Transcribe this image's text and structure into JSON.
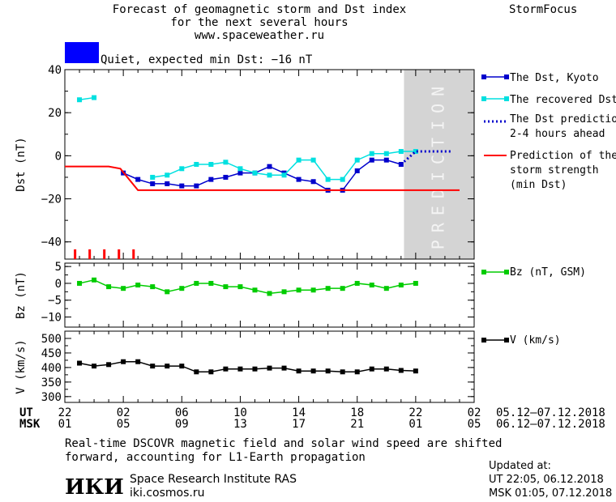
{
  "header": {
    "title_line1": "Forecast of geomagnetic storm and Dst index",
    "title_line2": "for the next several hours",
    "title_line3": "www.spaceweather.ru",
    "brand": "StormFocus"
  },
  "status": {
    "text": "Quiet, expected min Dst: −16 nT",
    "color": "#0000ff"
  },
  "prediction_band_label": "PREDICTION",
  "legend": {
    "dst_kyoto": "The Dst, Kyoto",
    "recovered": "The recovered Dst",
    "prediction_l1": "The Dst prediction",
    "prediction_l2": "2-4 hours ahead",
    "strength_l1": "Prediction of the",
    "strength_l2": "storm strength",
    "strength_l3": "(min Dst)",
    "bz": "Bz (nT, GSM)",
    "v": "V (km/s)"
  },
  "time_axis": {
    "ut_label": "UT",
    "msk_label": "MSK",
    "ut_ticks": [
      "22",
      "02",
      "06",
      "10",
      "14",
      "18",
      "22",
      "02"
    ],
    "msk_ticks": [
      "01",
      "05",
      "09",
      "13",
      "17",
      "21",
      "01",
      "05"
    ],
    "ut_range": "05.12–07.12.2018",
    "msk_range": "06.12–07.12.2018"
  },
  "footer": {
    "note_l1": "Real-time DSCOVR magnetic field and solar wind speed are shifted",
    "note_l2": "forward, accounting for L1-Earth propagation",
    "logo": "ИКИ",
    "institute": "Space Research Institute RAS",
    "site": "iki.cosmos.ru",
    "updated_title": "Updated at:",
    "updated_ut": "UT  22:05, 06.12.2018",
    "updated_msk": "MSK 01:05, 07.12.2018"
  },
  "chart_data": [
    {
      "type": "line",
      "panel": "dst",
      "ylabel": "Dst (nT)",
      "ylim": [
        -48,
        40
      ],
      "yticks": [
        40,
        20,
        0,
        -20,
        -40
      ],
      "xlim": [
        -1,
        27
      ],
      "prediction_band_x": [
        22.2,
        26
      ],
      "series": [
        {
          "name": "The Dst, Kyoto",
          "color": "#0000cc",
          "x": [
            3,
            4,
            5,
            6,
            7,
            8,
            9,
            10,
            11,
            12,
            13,
            14,
            15,
            16,
            17,
            18,
            19,
            20,
            21,
            22
          ],
          "y": [
            -8,
            -11,
            -13,
            -13,
            -14,
            -14,
            -11,
            -10,
            -8,
            -8,
            -5,
            -8,
            -11,
            -12,
            -16,
            -16,
            -7,
            -2,
            -2,
            -4
          ]
        },
        {
          "name": "The recovered Dst",
          "color": "#00e0e0",
          "x": [
            0,
            1,
            5,
            6,
            7,
            8,
            9,
            10,
            11,
            12,
            13,
            14,
            15,
            16,
            17,
            18,
            19,
            20,
            21,
            22,
            23
          ],
          "y": [
            26,
            27,
            -10,
            -9,
            -6,
            -4,
            -4,
            -3,
            -6,
            -8,
            -9,
            -9,
            -2,
            -2,
            -11,
            -11,
            -2,
            1,
            1,
            2,
            2
          ]
        },
        {
          "name": "The Dst prediction",
          "color": "#0000cc",
          "dotted": true,
          "x": [
            22,
            23,
            25.5
          ],
          "y": [
            -4,
            2,
            2
          ]
        },
        {
          "name": "Prediction of the storm strength",
          "color": "#ff0000",
          "x": [
            -1,
            2,
            2.8,
            4,
            26
          ],
          "y": [
            -5,
            -5,
            -6,
            -16,
            -16
          ]
        }
      ],
      "storm_ticks_x": [
        -0.3,
        0.7,
        1.7,
        2.7,
        3.7
      ]
    },
    {
      "type": "line",
      "panel": "bz",
      "ylabel": "Bz (nT)",
      "ylim": [
        -13,
        6
      ],
      "yticks": [
        5,
        0,
        -5,
        -10
      ],
      "series": [
        {
          "name": "Bz (nT, GSM)",
          "color": "#00cc00",
          "x": [
            0,
            1,
            2,
            3,
            4,
            5,
            6,
            7,
            8,
            9,
            10,
            11,
            12,
            13,
            14,
            15,
            16,
            17,
            18,
            19,
            20,
            21,
            22,
            23
          ],
          "y": [
            0,
            1,
            -1,
            -1.5,
            -0.5,
            -1,
            -2.5,
            -1.5,
            0,
            0,
            -1,
            -1,
            -2,
            -3,
            -2.5,
            -2,
            -2,
            -1.5,
            -1.5,
            0,
            -0.5,
            -1.5,
            -0.5,
            0
          ]
        }
      ]
    },
    {
      "type": "line",
      "panel": "v",
      "ylabel": "V (km/s)",
      "ylim": [
        280,
        525
      ],
      "yticks": [
        500,
        450,
        400,
        350,
        300
      ],
      "series": [
        {
          "name": "V (km/s)",
          "color": "#000000",
          "x": [
            0,
            1,
            2,
            3,
            4,
            5,
            6,
            7,
            8,
            9,
            10,
            11,
            12,
            13,
            14,
            15,
            16,
            17,
            18,
            19,
            20,
            21,
            22,
            23
          ],
          "y": [
            415,
            405,
            410,
            420,
            420,
            405,
            405,
            405,
            385,
            385,
            395,
            395,
            395,
            398,
            398,
            388,
            388,
            388,
            385,
            385,
            395,
            395,
            390,
            388
          ]
        }
      ]
    }
  ]
}
